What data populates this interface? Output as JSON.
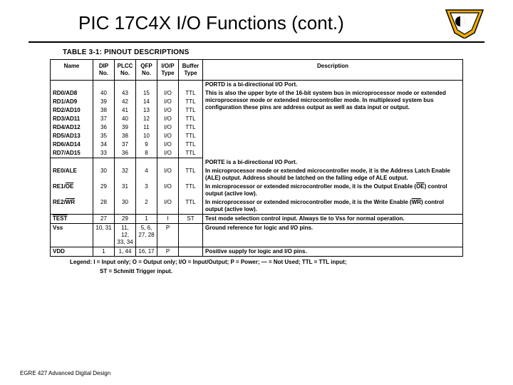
{
  "title": "PIC 17C4X I/O Functions (cont.)",
  "caption": "TABLE 3-1:    PINOUT DESCRIPTIONS",
  "columns": [
    "Name",
    "DIP No.",
    "PLCC No.",
    "QFP No.",
    "I/O/P Type",
    "Buffer Type",
    "Description"
  ],
  "portd": {
    "intro": "PORTD is a bi-directional I/O Port.",
    "desc": "This is also the upper byte of the 16-bit system bus in microprocessor mode or extended microprocessor mode or extended microcontroller mode. In multiplexed system bus configuration these pins are address output as well as data input or output.",
    "rows": [
      {
        "name": "RD0/AD8",
        "dip": "40",
        "plcc": "43",
        "qfp": "15",
        "iop": "I/O",
        "buf": "TTL"
      },
      {
        "name": "RD1/AD9",
        "dip": "39",
        "plcc": "42",
        "qfp": "14",
        "iop": "I/O",
        "buf": "TTL"
      },
      {
        "name": "RD2/AD10",
        "dip": "38",
        "plcc": "41",
        "qfp": "13",
        "iop": "I/O",
        "buf": "TTL"
      },
      {
        "name": "RD3/AD11",
        "dip": "37",
        "plcc": "40",
        "qfp": "12",
        "iop": "I/O",
        "buf": "TTL"
      },
      {
        "name": "RD4/AD12",
        "dip": "36",
        "plcc": "39",
        "qfp": "11",
        "iop": "I/O",
        "buf": "TTL"
      },
      {
        "name": "RD5/AD13",
        "dip": "35",
        "plcc": "38",
        "qfp": "10",
        "iop": "I/O",
        "buf": "TTL"
      },
      {
        "name": "RD6/AD14",
        "dip": "34",
        "plcc": "37",
        "qfp": "9",
        "iop": "I/O",
        "buf": "TTL"
      },
      {
        "name": "RD7/AD15",
        "dip": "33",
        "plcc": "36",
        "qfp": "8",
        "iop": "I/O",
        "buf": "TTL"
      }
    ]
  },
  "porte": {
    "intro": "PORTE is a bi-directional I/O Port.",
    "rows": [
      {
        "name": "RE0/ALE",
        "dip": "30",
        "plcc": "32",
        "qfp": "4",
        "iop": "I/O",
        "buf": "TTL",
        "desc": "In microprocessor mode or extended microcontroller mode, it is the Address Latch Enable (ALE) output. Address should be latched on the falling edge of ALE output."
      },
      {
        "name": "RE1/OE",
        "name_html": "RE1/<span class='ol'>OE</span>",
        "dip": "29",
        "plcc": "31",
        "qfp": "3",
        "iop": "I/O",
        "buf": "TTL",
        "desc_html": "In microprocessor or extended microcontroller mode, it is the Output Enable (<span class='ol'>OE</span>) control output (active low)."
      },
      {
        "name": "RE2/WR",
        "name_html": "RE2/<span class='ol'>WR</span>",
        "dip": "28",
        "plcc": "30",
        "qfp": "2",
        "iop": "I/O",
        "buf": "TTL",
        "desc_html": "In microprocessor or extended microcontroller mode, it is the Write Enable (<span class='ol'>WR</span>) control output (active low)."
      }
    ]
  },
  "test": {
    "name_html": "<span class='ol'>TEST</span>",
    "dip": "27",
    "plcc": "29",
    "qfp": "1",
    "iop": "I",
    "buf": "ST",
    "desc": "Test mode selection control input.  Always tie to Vss for normal operation."
  },
  "vss": {
    "name": "Vss",
    "dip": "10, 31",
    "plcc": "11, 12, 33, 34",
    "qfp": "5, 6, 27, 28",
    "iop": "P",
    "buf": "",
    "desc": "Ground reference for logic and I/O pins."
  },
  "vdd": {
    "name": "VDD",
    "dip": "1",
    "plcc": "1, 44",
    "qfp": "16, 17",
    "iop": "P",
    "buf": "",
    "desc": "Positive supply for logic and I/O pins."
  },
  "legend1": "Legend:  I = Input only;  O = Output only;  I/O = Input/Output;  P = Power;  — = Not Used;  TTL = TTL input;",
  "legend2": "ST = Schmitt Trigger input.",
  "footer": "EGRE 427 Advanced Digital Design",
  "colors": {
    "line": "#000000",
    "bg": "#ffffff",
    "logo_gold": "#f0ac00",
    "logo_fill": "#ffffff"
  }
}
